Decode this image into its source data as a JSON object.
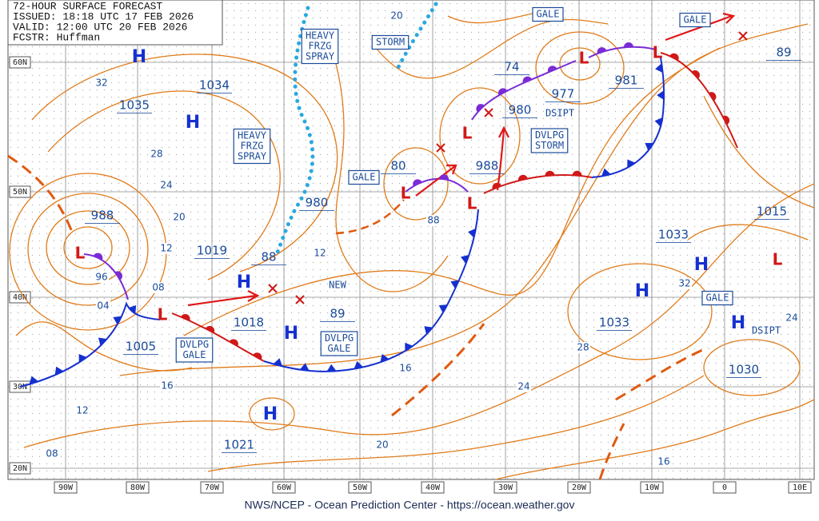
{
  "header": {
    "lines": [
      "72-HOUR SURFACE FORECAST",
      "ISSUED: 18:18 UTC 17 FEB 2026",
      "VALID: 12:00 UTC 20 FEB 2026",
      "FCSTR: Huffman"
    ]
  },
  "footer": "NWS/NCEP - Ocean Prediction Center - https://ocean.weather.gov",
  "latitude_labels": [
    "60N",
    "50N",
    "40N",
    "30N",
    "20N"
  ],
  "longitude_labels": [
    "90W",
    "80W",
    "70W",
    "60W",
    "50W",
    "40W",
    "30W",
    "20W",
    "10W",
    "0",
    "10E"
  ],
  "high_symbol": "H",
  "low_symbol": "L",
  "pressure_centers": [
    1034,
    1035,
    988,
    1019,
    1018,
    1005,
    1021,
    980,
    977,
    981,
    980,
    988,
    1033,
    1033,
    1030,
    1015,
    89,
    74,
    80,
    88,
    89
  ],
  "isobar_labels": [
    "32",
    "28",
    "24",
    "20",
    "12",
    "96",
    "08",
    "04",
    "16",
    "12",
    "08",
    "20",
    "88",
    "12",
    "16",
    "24",
    "28",
    "20",
    "16",
    "32",
    "24"
  ],
  "boxed_labels": [
    {
      "lines": [
        "HEAVY",
        "FRZG",
        "SPRAY"
      ]
    },
    {
      "lines": [
        "STORM"
      ]
    },
    {
      "lines": [
        "GALE"
      ]
    },
    {
      "lines": [
        "GALE"
      ]
    },
    {
      "lines": [
        "HEAVY",
        "FRZG",
        "SPRAY"
      ]
    },
    {
      "lines": [
        "GALE"
      ]
    },
    {
      "lines": [
        "DVLPG",
        "STORM"
      ]
    },
    {
      "lines": [
        "DVLPG",
        "GALE"
      ]
    },
    {
      "lines": [
        "DVLPG",
        "GALE"
      ]
    },
    {
      "lines": [
        "GALE"
      ]
    }
  ],
  "annotations": [
    "DSIPT",
    "DSIPT",
    "NEW"
  ]
}
